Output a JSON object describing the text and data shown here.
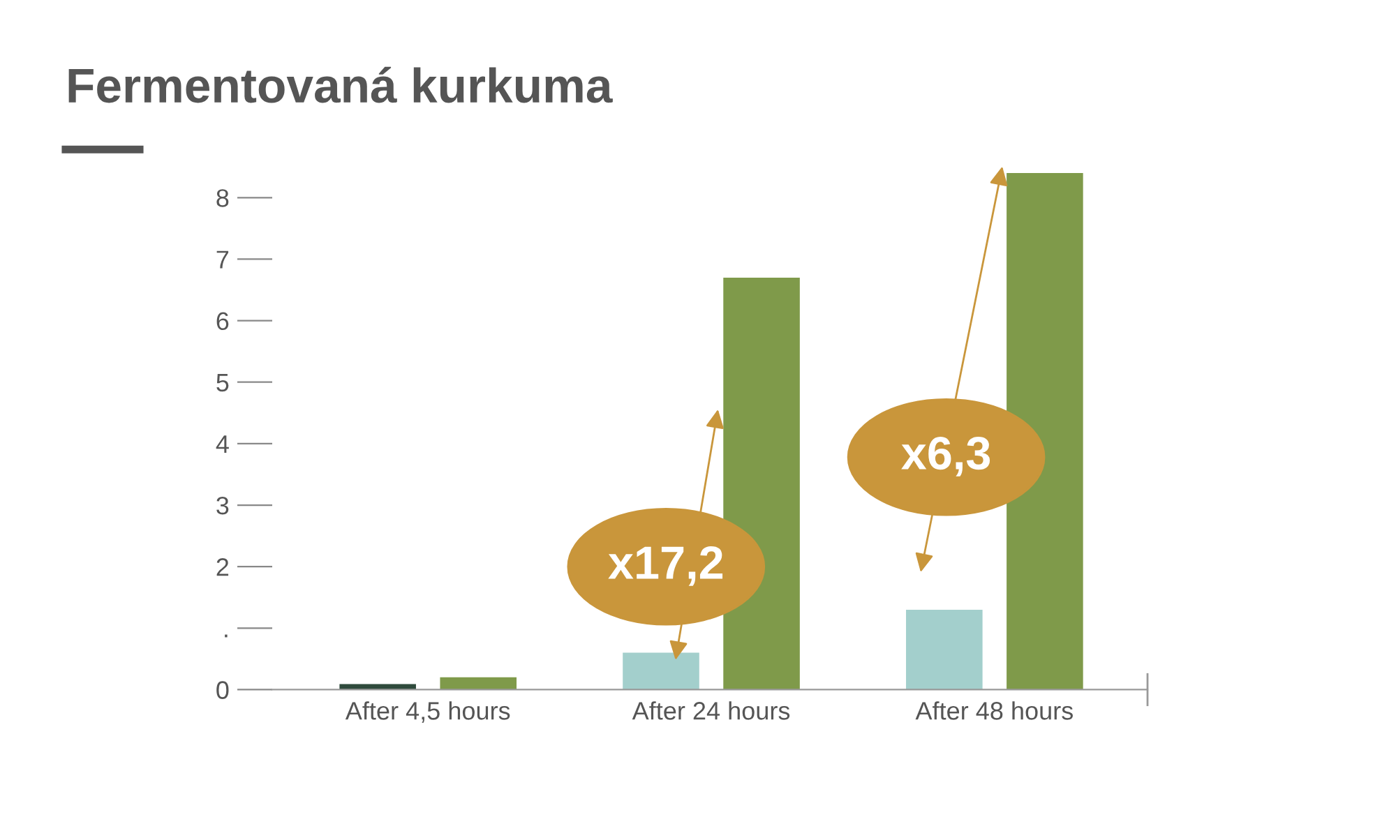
{
  "chart_data": {
    "type": "bar",
    "title": "Fermentovaná kurkuma",
    "categories": [
      "After 4,5 hours",
      "After 24 hours",
      "After 48 hours"
    ],
    "series": [
      {
        "colors": [
          "#2f4a3c",
          "#a3cfcc",
          "#a3cfcc"
        ],
        "values": [
          0.09,
          0.6,
          1.3
        ]
      },
      {
        "color": "#7f9a4a",
        "values": [
          0.2,
          6.7,
          8.4
        ]
      }
    ],
    "ylim": [
      0,
      8.4
    ],
    "yticks": [
      0,
      {
        "value": 1,
        "label": "."
      },
      2,
      3,
      4,
      5,
      6,
      7,
      8
    ],
    "grid": false,
    "annotations": [
      "x17,2",
      "x6,3"
    ]
  }
}
